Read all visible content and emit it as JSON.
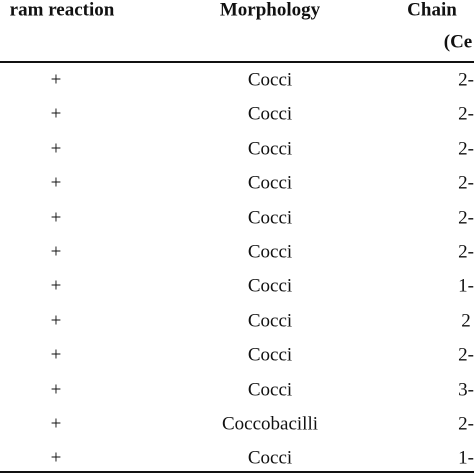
{
  "table": {
    "header": [
      "ram reaction",
      "Morphology",
      "Chain",
      "(Ce"
    ],
    "rows": [
      [
        "+",
        "Cocci",
        "2-"
      ],
      [
        "+",
        "Cocci",
        "2-"
      ],
      [
        "+",
        "Cocci",
        "2-"
      ],
      [
        "+",
        "Cocci",
        "2-"
      ],
      [
        "+",
        "Cocci",
        "2-"
      ],
      [
        "+",
        "Cocci",
        "2-"
      ],
      [
        "+",
        "Cocci",
        "1-"
      ],
      [
        "+",
        "Cocci",
        "2"
      ],
      [
        "+",
        "Cocci",
        "2-"
      ],
      [
        "+",
        "Cocci",
        "3-"
      ],
      [
        "+",
        "Coccobacilli",
        "2-"
      ],
      [
        "+",
        "Cocci",
        "1-"
      ]
    ]
  }
}
